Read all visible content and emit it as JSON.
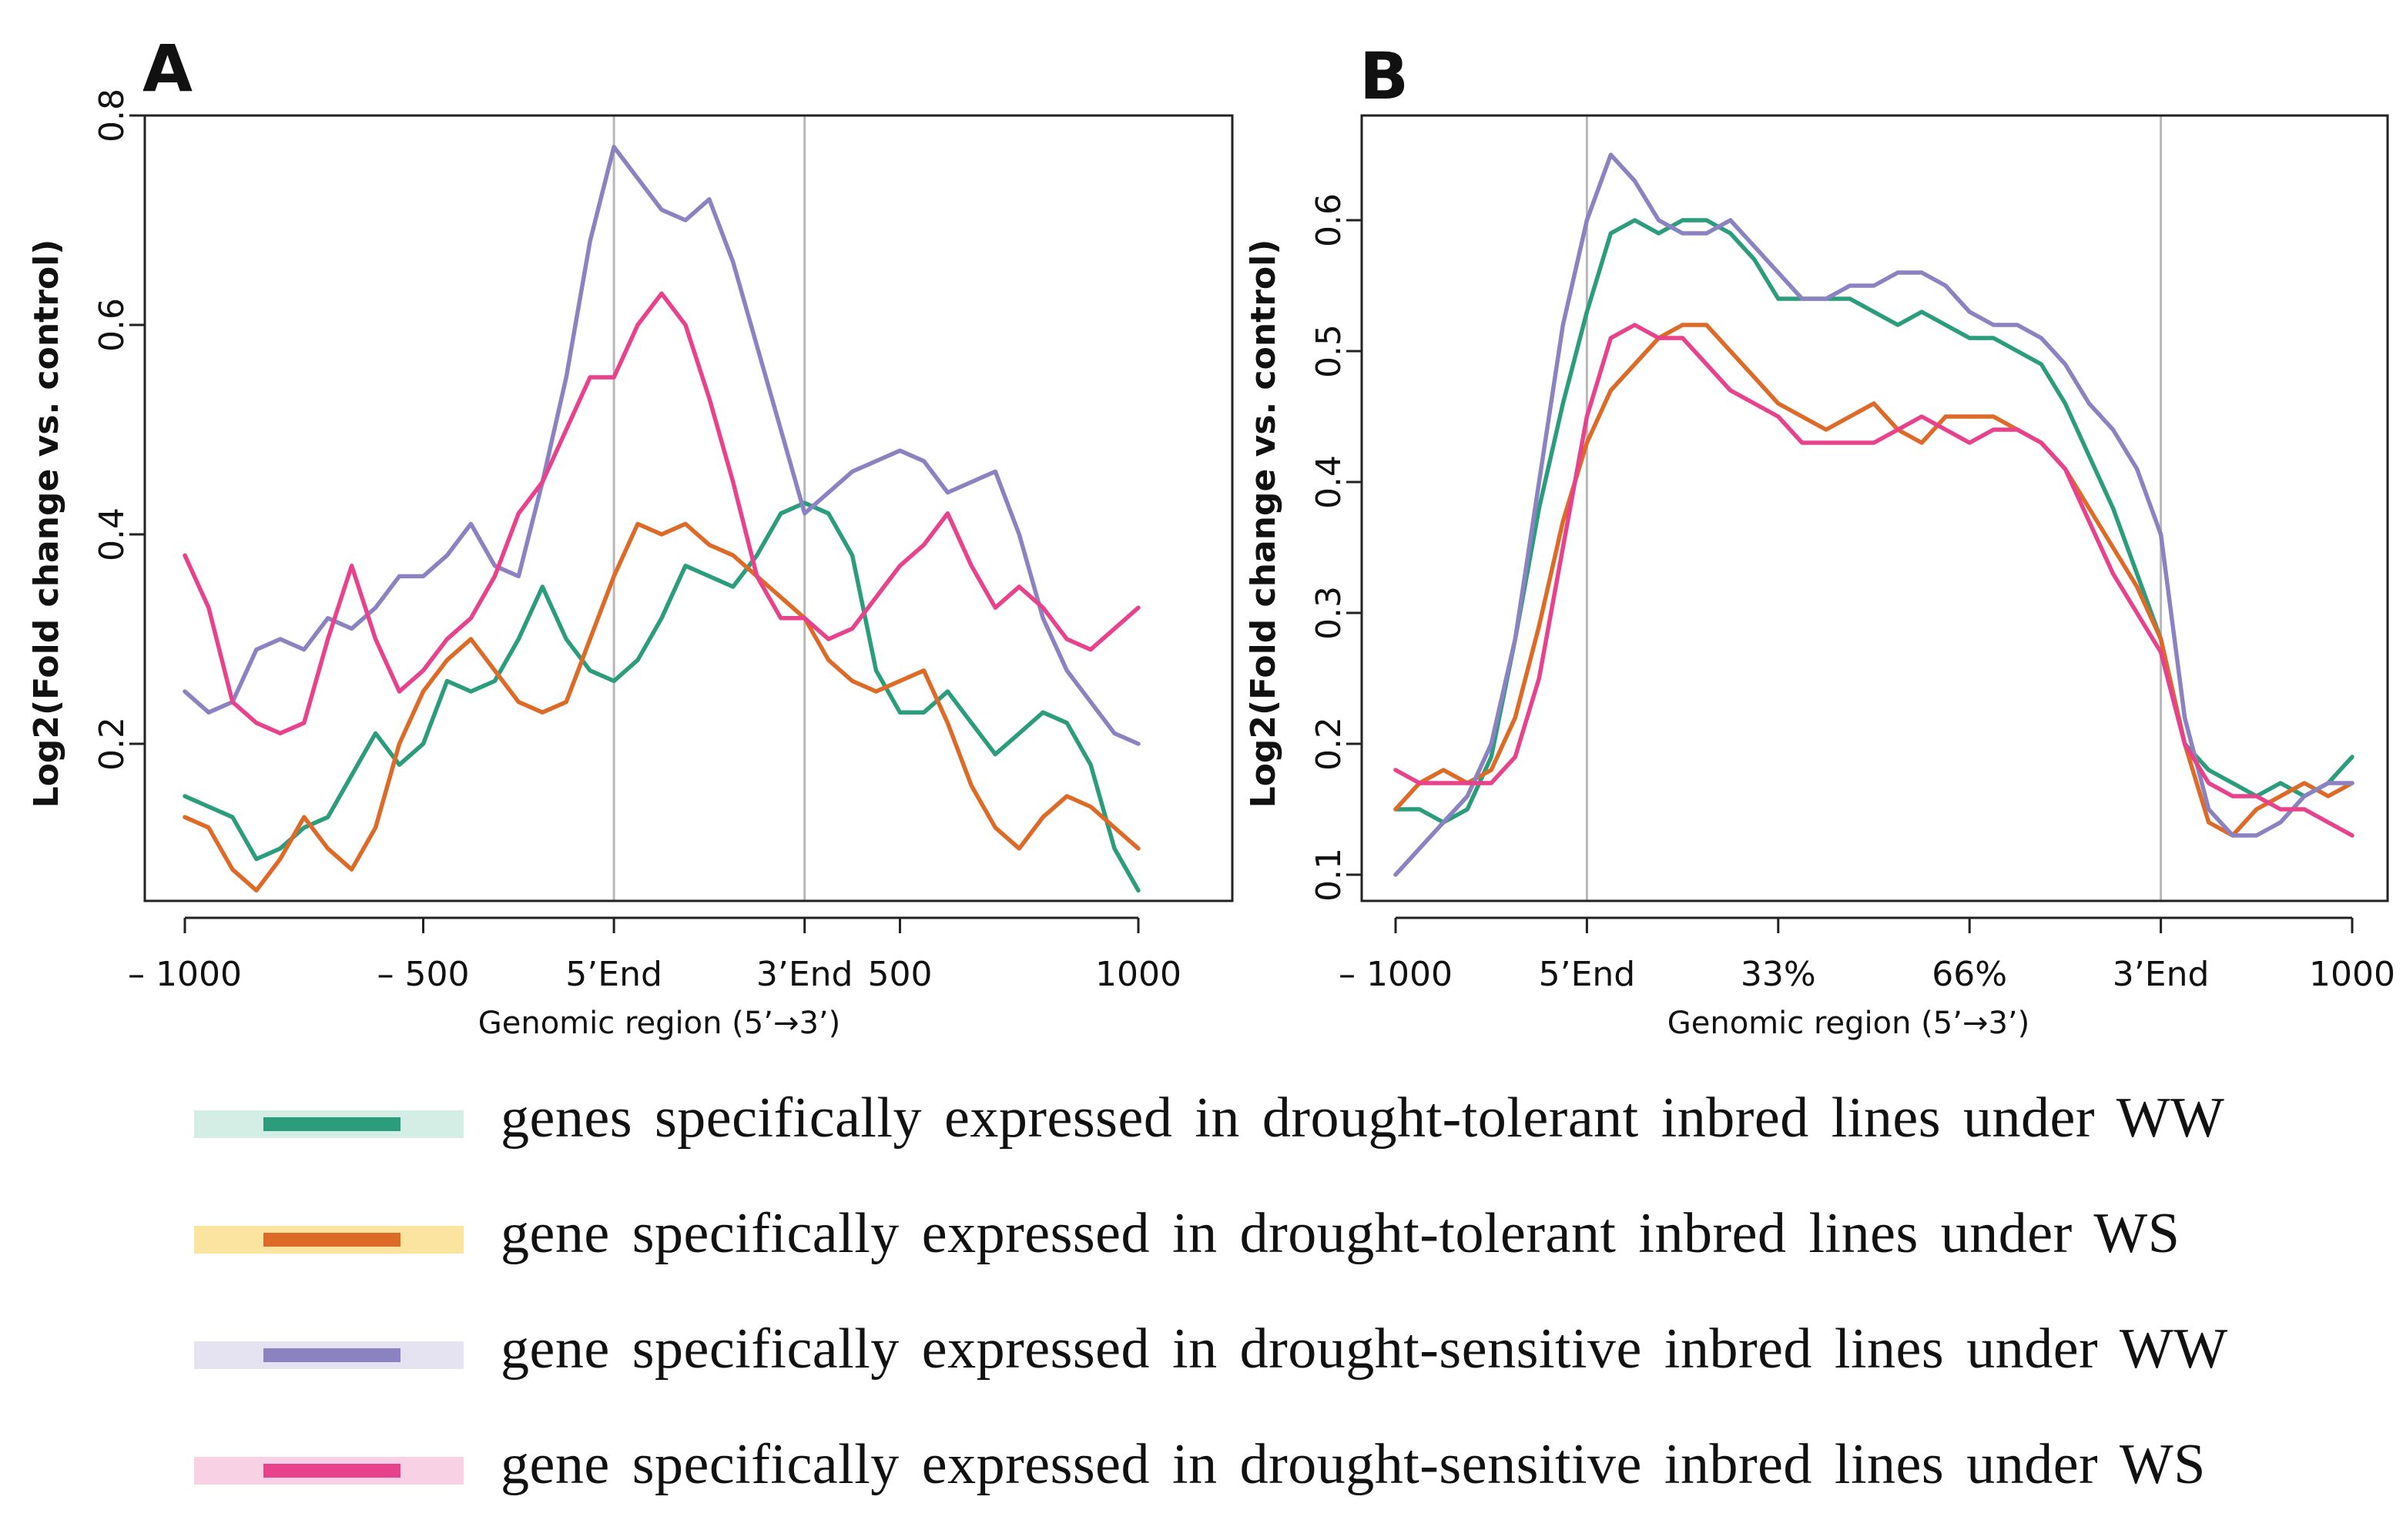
{
  "chart_data": [
    {
      "panel": "A",
      "type": "line",
      "xlabel": "Genomic region (5’→3’)",
      "ylabel": "Log2(Fold change vs. control)",
      "ylim": [
        0.05,
        0.8
      ],
      "xlim": [
        -1000,
        1000
      ],
      "yticks": [
        0.2,
        0.4,
        0.6,
        0.8
      ],
      "ytick_labels": [
        "0.2",
        "0.4",
        "0.6",
        "0.8"
      ],
      "xticks": [
        -1000,
        -500,
        -100,
        300,
        500,
        1000
      ],
      "xtick_labels": [
        "– 1000",
        "– 500",
        "5’End",
        "3’End",
        "500",
        "1000"
      ],
      "vlines": [
        -100,
        300
      ],
      "series": [
        {
          "name": "genes specifically expressed in drought-tolerant inbred lines under WW",
          "color": "#2b9d7d",
          "x": [
            -1000,
            -950,
            -900,
            -850,
            -800,
            -750,
            -700,
            -650,
            -600,
            -550,
            -500,
            -450,
            -400,
            -350,
            -300,
            -250,
            -200,
            -150,
            -100,
            -50,
            0,
            50,
            100,
            150,
            200,
            250,
            300,
            350,
            400,
            450,
            500,
            550,
            600,
            650,
            700,
            750,
            800,
            850,
            900,
            950,
            1000
          ],
          "y": [
            0.15,
            0.14,
            0.13,
            0.09,
            0.1,
            0.12,
            0.13,
            0.17,
            0.21,
            0.18,
            0.2,
            0.26,
            0.25,
            0.26,
            0.3,
            0.35,
            0.3,
            0.27,
            0.26,
            0.28,
            0.32,
            0.37,
            0.36,
            0.35,
            0.38,
            0.42,
            0.43,
            0.42,
            0.38,
            0.27,
            0.23,
            0.23,
            0.25,
            0.22,
            0.19,
            0.21,
            0.23,
            0.22,
            0.18,
            0.1,
            0.06
          ]
        },
        {
          "name": "gene specifically expressed in drought-tolerant inbred lines under WS",
          "color": "#dd6a26",
          "x": [
            -1000,
            -950,
            -900,
            -850,
            -800,
            -750,
            -700,
            -650,
            -600,
            -550,
            -500,
            -450,
            -400,
            -350,
            -300,
            -250,
            -200,
            -150,
            -100,
            -50,
            0,
            50,
            100,
            150,
            200,
            250,
            300,
            350,
            400,
            450,
            500,
            550,
            600,
            650,
            700,
            750,
            800,
            850,
            900,
            950,
            1000
          ],
          "y": [
            0.13,
            0.12,
            0.08,
            0.06,
            0.09,
            0.13,
            0.1,
            0.08,
            0.12,
            0.2,
            0.25,
            0.28,
            0.3,
            0.27,
            0.24,
            0.23,
            0.24,
            0.3,
            0.36,
            0.41,
            0.4,
            0.41,
            0.39,
            0.38,
            0.36,
            0.34,
            0.32,
            0.28,
            0.26,
            0.25,
            0.26,
            0.27,
            0.22,
            0.16,
            0.12,
            0.1,
            0.13,
            0.15,
            0.14,
            0.12,
            0.1
          ]
        },
        {
          "name": "gene specifically expressed in drought-sensitive inbred lines under WW",
          "color": "#8b82c1",
          "x": [
            -1000,
            -950,
            -900,
            -850,
            -800,
            -750,
            -700,
            -650,
            -600,
            -550,
            -500,
            -450,
            -400,
            -350,
            -300,
            -250,
            -200,
            -150,
            -100,
            -50,
            0,
            50,
            100,
            150,
            200,
            250,
            300,
            350,
            400,
            450,
            500,
            550,
            600,
            650,
            700,
            750,
            800,
            850,
            900,
            950,
            1000
          ],
          "y": [
            0.25,
            0.23,
            0.24,
            0.29,
            0.3,
            0.29,
            0.32,
            0.31,
            0.33,
            0.36,
            0.36,
            0.38,
            0.41,
            0.37,
            0.36,
            0.45,
            0.55,
            0.68,
            0.77,
            0.74,
            0.71,
            0.7,
            0.72,
            0.66,
            0.58,
            0.5,
            0.42,
            0.44,
            0.46,
            0.47,
            0.48,
            0.47,
            0.44,
            0.45,
            0.46,
            0.4,
            0.32,
            0.27,
            0.24,
            0.21,
            0.2
          ]
        },
        {
          "name": "gene specifically expressed in drought-sensitive inbred lines under WS",
          "color": "#e8428c",
          "x": [
            -1000,
            -950,
            -900,
            -850,
            -800,
            -750,
            -700,
            -650,
            -600,
            -550,
            -500,
            -450,
            -400,
            -350,
            -300,
            -250,
            -200,
            -150,
            -100,
            -50,
            0,
            50,
            100,
            150,
            200,
            250,
            300,
            350,
            400,
            450,
            500,
            550,
            600,
            650,
            700,
            750,
            800,
            850,
            900,
            950,
            1000
          ],
          "y": [
            0.38,
            0.33,
            0.24,
            0.22,
            0.21,
            0.22,
            0.3,
            0.37,
            0.3,
            0.25,
            0.27,
            0.3,
            0.32,
            0.36,
            0.42,
            0.45,
            0.5,
            0.55,
            0.55,
            0.6,
            0.63,
            0.6,
            0.53,
            0.45,
            0.36,
            0.32,
            0.32,
            0.3,
            0.31,
            0.34,
            0.37,
            0.39,
            0.42,
            0.37,
            0.33,
            0.35,
            0.33,
            0.3,
            0.29,
            0.31,
            0.33
          ]
        }
      ]
    },
    {
      "panel": "B",
      "type": "line",
      "xlabel": "Genomic region (5’→3’)",
      "ylabel": "Log2(Fold change vs. control)",
      "ylim": [
        0.08,
        0.68
      ],
      "xlim": [
        0,
        100
      ],
      "yticks": [
        0.1,
        0.2,
        0.3,
        0.4,
        0.5,
        0.6
      ],
      "ytick_labels": [
        "0.1",
        "0.2",
        "0.3",
        "0.4",
        "0.5",
        "0.6"
      ],
      "xticks": [
        0,
        20,
        40,
        60,
        80,
        100
      ],
      "xtick_labels": [
        "– 1000",
        "5’End",
        "33%",
        "66%",
        "3’End",
        "1000"
      ],
      "vlines": [
        20,
        80
      ],
      "series": [
        {
          "name": "genes specifically expressed in drought-tolerant inbred lines under WW",
          "color": "#2b9d7d",
          "x": [
            0,
            2.5,
            5,
            7.5,
            10,
            12.5,
            15,
            17.5,
            20,
            22.5,
            25,
            27.5,
            30,
            32.5,
            35,
            37.5,
            40,
            42.5,
            45,
            47.5,
            50,
            52.5,
            55,
            57.5,
            60,
            62.5,
            65,
            67.5,
            70,
            72.5,
            75,
            77.5,
            80,
            82.5,
            85,
            87.5,
            90,
            92.5,
            95,
            97.5,
            100
          ],
          "y": [
            0.15,
            0.15,
            0.14,
            0.15,
            0.19,
            0.28,
            0.38,
            0.46,
            0.53,
            0.59,
            0.6,
            0.59,
            0.6,
            0.6,
            0.59,
            0.57,
            0.54,
            0.54,
            0.54,
            0.54,
            0.53,
            0.52,
            0.53,
            0.52,
            0.51,
            0.51,
            0.5,
            0.49,
            0.46,
            0.42,
            0.38,
            0.33,
            0.28,
            0.2,
            0.18,
            0.17,
            0.16,
            0.17,
            0.16,
            0.17,
            0.19
          ]
        },
        {
          "name": "gene specifically expressed in drought-tolerant inbred lines under WS",
          "color": "#dd6a26",
          "x": [
            0,
            2.5,
            5,
            7.5,
            10,
            12.5,
            15,
            17.5,
            20,
            22.5,
            25,
            27.5,
            30,
            32.5,
            35,
            37.5,
            40,
            42.5,
            45,
            47.5,
            50,
            52.5,
            55,
            57.5,
            60,
            62.5,
            65,
            67.5,
            70,
            72.5,
            75,
            77.5,
            80,
            82.5,
            85,
            87.5,
            90,
            92.5,
            95,
            97.5,
            100
          ],
          "y": [
            0.15,
            0.17,
            0.18,
            0.17,
            0.18,
            0.22,
            0.29,
            0.37,
            0.43,
            0.47,
            0.49,
            0.51,
            0.52,
            0.52,
            0.5,
            0.48,
            0.46,
            0.45,
            0.44,
            0.45,
            0.46,
            0.44,
            0.43,
            0.45,
            0.45,
            0.45,
            0.44,
            0.43,
            0.41,
            0.38,
            0.35,
            0.32,
            0.28,
            0.2,
            0.14,
            0.13,
            0.15,
            0.16,
            0.17,
            0.16,
            0.17
          ]
        },
        {
          "name": "gene specifically expressed in drought-sensitive inbred lines under WW",
          "color": "#8b82c1",
          "x": [
            0,
            2.5,
            5,
            7.5,
            10,
            12.5,
            15,
            17.5,
            20,
            22.5,
            25,
            27.5,
            30,
            32.5,
            35,
            37.5,
            40,
            42.5,
            45,
            47.5,
            50,
            52.5,
            55,
            57.5,
            60,
            62.5,
            65,
            67.5,
            70,
            72.5,
            75,
            77.5,
            80,
            82.5,
            85,
            87.5,
            90,
            92.5,
            95,
            97.5,
            100
          ],
          "y": [
            0.1,
            0.12,
            0.14,
            0.16,
            0.2,
            0.28,
            0.4,
            0.52,
            0.6,
            0.65,
            0.63,
            0.6,
            0.59,
            0.59,
            0.6,
            0.58,
            0.56,
            0.54,
            0.54,
            0.55,
            0.55,
            0.56,
            0.56,
            0.55,
            0.53,
            0.52,
            0.52,
            0.51,
            0.49,
            0.46,
            0.44,
            0.41,
            0.36,
            0.22,
            0.15,
            0.13,
            0.13,
            0.14,
            0.16,
            0.17,
            0.17
          ]
        },
        {
          "name": "gene specifically expressed in drought-sensitive inbred lines under WS",
          "color": "#e8428c",
          "x": [
            0,
            2.5,
            5,
            7.5,
            10,
            12.5,
            15,
            17.5,
            20,
            22.5,
            25,
            27.5,
            30,
            32.5,
            35,
            37.5,
            40,
            42.5,
            45,
            47.5,
            50,
            52.5,
            55,
            57.5,
            60,
            62.5,
            65,
            67.5,
            70,
            72.5,
            75,
            77.5,
            80,
            82.5,
            85,
            87.5,
            90,
            92.5,
            95,
            97.5,
            100
          ],
          "y": [
            0.18,
            0.17,
            0.17,
            0.17,
            0.17,
            0.19,
            0.25,
            0.35,
            0.45,
            0.51,
            0.52,
            0.51,
            0.51,
            0.49,
            0.47,
            0.46,
            0.45,
            0.43,
            0.43,
            0.43,
            0.43,
            0.44,
            0.45,
            0.44,
            0.43,
            0.44,
            0.44,
            0.43,
            0.41,
            0.37,
            0.33,
            0.3,
            0.27,
            0.2,
            0.17,
            0.16,
            0.16,
            0.15,
            0.15,
            0.14,
            0.13
          ]
        }
      ]
    }
  ],
  "legend": [
    {
      "label": "genes specifically expressed in drought-tolerant inbred lines under WW",
      "color": "#2b9d7d",
      "light": "#d4eee6"
    },
    {
      "label": "gene specifically expressed in drought-tolerant inbred lines under WS",
      "color": "#dd6a26",
      "light": "#fbe3a0"
    },
    {
      "label": "gene specifically expressed in drought-sensitive inbred lines under WW",
      "color": "#8b82c1",
      "light": "#e5e3f1"
    },
    {
      "label": "gene specifically expressed in drought-sensitive inbred lines under WS",
      "color": "#e8428c",
      "light": "#f9d1e4"
    }
  ]
}
